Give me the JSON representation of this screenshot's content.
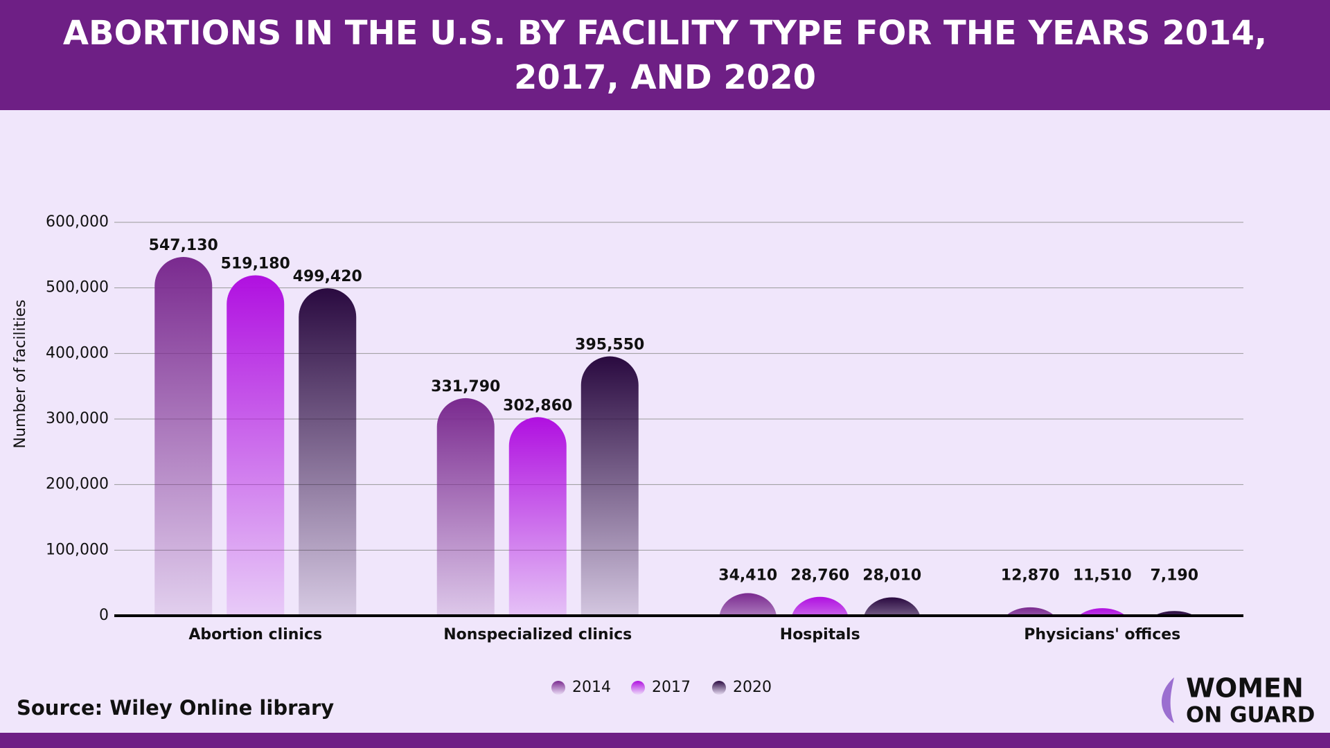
{
  "chart_data": {
    "type": "bar",
    "title": "ABORTIONS IN THE U.S. BY FACILITY TYPE FOR THE YEARS 2014, 2017, AND 2020",
    "y_label": "Number of facilities",
    "categories": [
      "Abortion clinics",
      "Nonspecialized clinics",
      "Hospitals",
      "Physicians' offices"
    ],
    "series": [
      {
        "name": "2014",
        "color": "#7a2a8f",
        "values": [
          547130,
          331790,
          34410,
          12870
        ],
        "value_labels": [
          "547,130",
          "331,790",
          "34,410",
          "12,870"
        ]
      },
      {
        "name": "2017",
        "color": "#b010e0",
        "values": [
          519180,
          302860,
          28760,
          11510
        ],
        "value_labels": [
          "519,180",
          "302,860",
          "28,760",
          "11,510"
        ]
      },
      {
        "name": "2020",
        "color": "#2a0a40",
        "values": [
          499420,
          395550,
          28010,
          7190
        ],
        "value_labels": [
          "499,420",
          "395,550",
          "28,010",
          "7,190"
        ]
      }
    ],
    "ylim": [
      0,
      600000
    ],
    "yticks": [
      0,
      {
        "value": 100000,
        "label": "100,000"
      },
      {
        "value": 200000,
        "label": "200,000"
      },
      {
        "value": 300000,
        "label": "300,000"
      },
      {
        "value": 400000,
        "label": "400,000"
      },
      {
        "value": 500000,
        "label": "500,000"
      },
      {
        "value": 600000,
        "label": "600,000"
      }
    ],
    "grid": true,
    "legend": "bottom",
    "source": "Source: Wiley Online library",
    "logo": [
      "WOMEN",
      "ON GUARD"
    ]
  }
}
